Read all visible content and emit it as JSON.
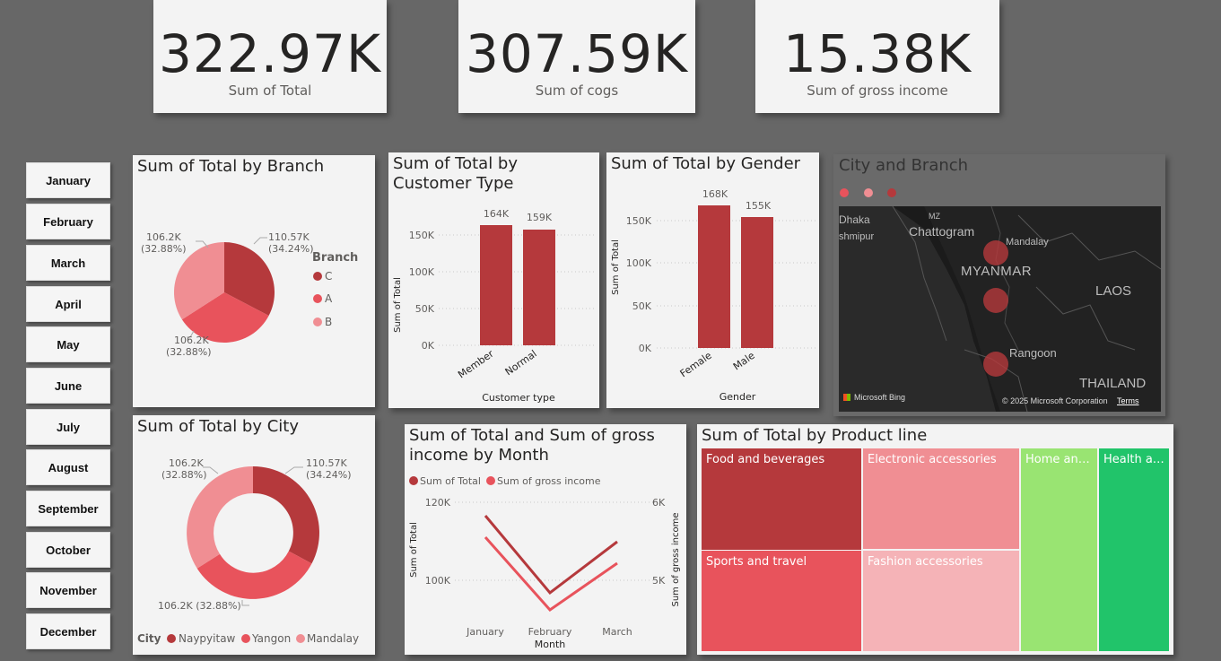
{
  "kpis": [
    {
      "value": "322.97K",
      "label": "Sum of Total"
    },
    {
      "value": "307.59K",
      "label": "Sum of cogs"
    },
    {
      "value": "15.38K",
      "label": "Sum of gross income"
    }
  ],
  "months": [
    "January",
    "February",
    "March",
    "April",
    "May",
    "June",
    "July",
    "August",
    "September",
    "October",
    "November",
    "December"
  ],
  "colors": {
    "dark_red": "#b5393c",
    "red": "#e8535c",
    "pink": "#f08e93",
    "light_pink": "#f5b3b7",
    "light_green": "#99e472",
    "green": "#21c46a"
  },
  "branch_chart": {
    "title": "Sum of Total by Branch",
    "legend_title": "Branch",
    "legend": [
      "C",
      "A",
      "B"
    ],
    "labels": {
      "c": [
        "110.57K",
        "(34.24%)"
      ],
      "a": [
        "106.2K",
        "(32.88%)"
      ],
      "b": [
        "106.2K",
        "(32.88%)"
      ]
    }
  },
  "customer_chart": {
    "title_l1": "Sum of Total by",
    "title_l2": "Customer Type",
    "ylabel": "Sum of Total",
    "xlabel": "Customer type",
    "ticks": [
      "150K",
      "100K",
      "50K",
      "0K"
    ],
    "categories": [
      "Member",
      "Normal"
    ],
    "data_labels": [
      "164K",
      "159K"
    ]
  },
  "gender_chart": {
    "title": "Sum of Total by Gender",
    "ylabel": "Sum of Total",
    "xlabel": "Gender",
    "ticks": [
      "150K",
      "100K",
      "50K",
      "0K"
    ],
    "categories": [
      "Female",
      "Male"
    ],
    "data_labels": [
      "168K",
      "155K"
    ]
  },
  "map": {
    "title": "City and Branch",
    "places": {
      "dhaka": "Dhaka",
      "shmipur": "shmipur",
      "chattogram": "Chattogram",
      "mandalay": "Mandalay",
      "myanmar": "MYANMAR",
      "laos": "LAOS",
      "rangoon": "Rangoon",
      "thailand": "THAILAND",
      "mz": "MZ"
    },
    "footer_brand": "Microsoft Bing",
    "copyright": "© 2025 Microsoft Corporation",
    "terms": "Terms"
  },
  "city_chart": {
    "title": "Sum of Total by City",
    "legend_title": "City",
    "legend": [
      "Naypyitaw",
      "Yangon",
      "Mandalay"
    ],
    "labels": {
      "naypyitaw": [
        "110.57K",
        "(34.24%)"
      ],
      "yangon": "106.2K (32.88%)",
      "mandalay": [
        "106.2K",
        "(32.88%)"
      ]
    }
  },
  "month_chart": {
    "title_l1": "Sum of Total and Sum of gross",
    "title_l2": "income by Month",
    "legend": [
      "Sum of Total",
      "Sum of gross income"
    ],
    "ylabel_left": "Sum of Total",
    "ylabel_right": "Sum of gross income",
    "left_ticks": [
      "120K",
      "100K"
    ],
    "right_ticks": [
      "6K",
      "5K"
    ],
    "xlabel": "Month",
    "categories": [
      "January",
      "February",
      "March"
    ]
  },
  "product_chart": {
    "title": "Sum of Total by Product line",
    "cells": [
      "Food and beverages",
      "Electronic accessories",
      "Home and ...",
      "Health an...",
      "Sports and travel",
      "Fashion accessories"
    ]
  },
  "chart_data": [
    {
      "type": "pie",
      "title": "Sum of Total by Branch",
      "categories": [
        "C",
        "A",
        "B"
      ],
      "values": [
        110.57,
        106.2,
        106.2
      ],
      "unit": "K"
    },
    {
      "type": "bar",
      "title": "Sum of Total by Customer Type",
      "categories": [
        "Member",
        "Normal"
      ],
      "values": [
        164,
        159
      ],
      "unit": "K",
      "ylim": [
        0,
        170
      ]
    },
    {
      "type": "bar",
      "title": "Sum of Total by Gender",
      "categories": [
        "Female",
        "Male"
      ],
      "values": [
        168,
        155
      ],
      "unit": "K",
      "ylim": [
        0,
        170
      ]
    },
    {
      "type": "pie",
      "title": "Sum of Total by City",
      "categories": [
        "Naypyitaw",
        "Yangon",
        "Mandalay"
      ],
      "values": [
        110.57,
        106.2,
        106.2
      ],
      "unit": "K"
    },
    {
      "type": "line",
      "title": "Sum of Total and Sum of gross income by Month",
      "categories": [
        "January",
        "February",
        "March"
      ],
      "series": [
        {
          "name": "Sum of Total",
          "values": [
            116.3,
            97.2,
            109.5
          ]
        },
        {
          "name": "Sum of gross income",
          "values": [
            5.54,
            4.63,
            5.21
          ]
        }
      ]
    },
    {
      "type": "treemap",
      "title": "Sum of Total by Product line",
      "categories": [
        "Food and beverages",
        "Sports and travel",
        "Electronic accessories",
        "Fashion accessories",
        "Home and ...",
        "Health an..."
      ]
    }
  ]
}
